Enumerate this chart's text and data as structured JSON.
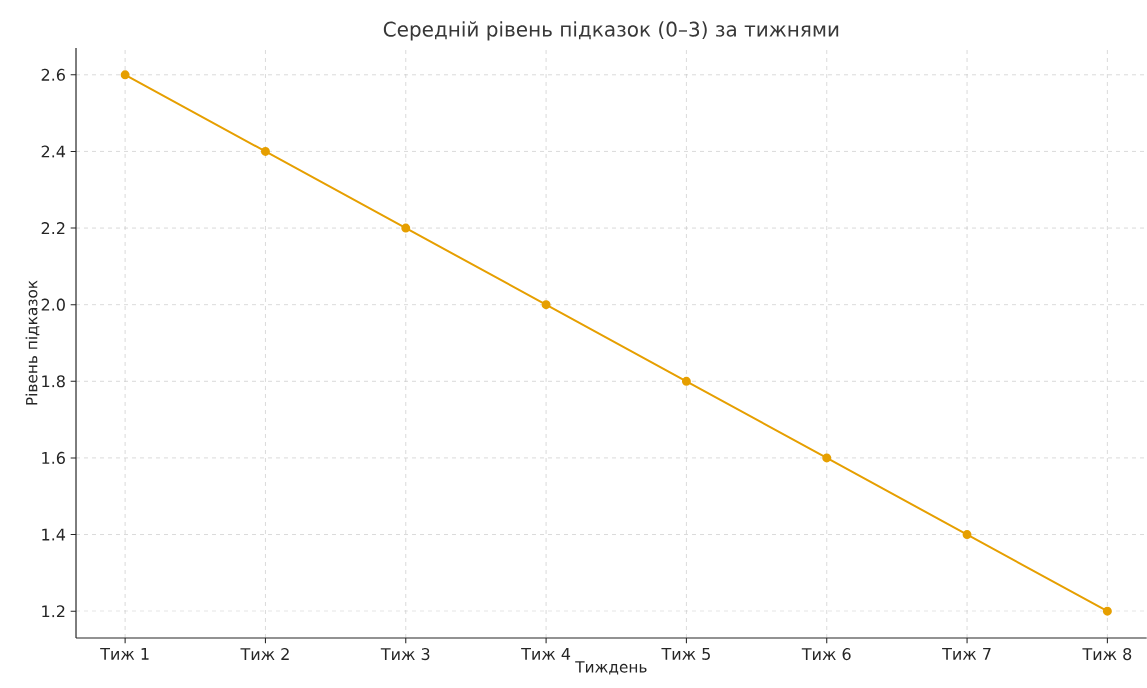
{
  "chart_data": {
    "type": "line",
    "title": "Середній рівень підказок (0–3) за тижнями",
    "xlabel": "Тиждень",
    "ylabel": "Рівень підказок",
    "categories": [
      "Тиж 1",
      "Тиж 2",
      "Тиж 3",
      "Тиж 4",
      "Тиж 5",
      "Тиж 6",
      "Тиж 7",
      "Тиж 8"
    ],
    "values": [
      2.6,
      2.4,
      2.2,
      2.0,
      1.8,
      1.6,
      1.4,
      1.2
    ],
    "color": "#e69f00",
    "ylim": [
      1.13,
      2.67
    ],
    "yticks": [
      {
        "value": 1.2,
        "label": "1.2"
      },
      {
        "value": 1.4,
        "label": "1.4"
      },
      {
        "value": 1.6,
        "label": "1.6"
      },
      {
        "value": 1.8,
        "label": "1.8"
      },
      {
        "value": 2.0,
        "label": "2.0"
      },
      {
        "value": 2.2,
        "label": "2.2"
      },
      {
        "value": 2.4,
        "label": "2.4"
      },
      {
        "value": 2.6,
        "label": "2.6"
      }
    ],
    "grid": true,
    "marker": "circle",
    "line_style": "solid"
  }
}
